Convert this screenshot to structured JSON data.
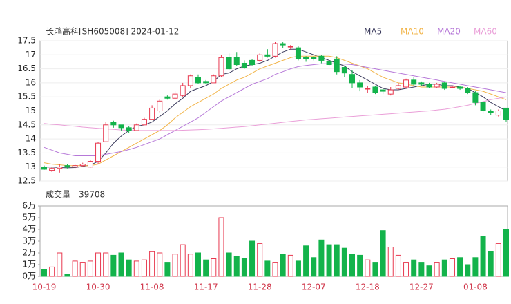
{
  "chart_data": [
    {
      "type": "candlestick",
      "title": "长鸿高科[SH605008] 2024-01-12",
      "up_color": "#e8384f",
      "down_color": "#13b34b",
      "open": [
        13.0,
        12.88,
        12.95,
        13.05,
        13.0,
        13.05,
        13.0,
        13.2,
        13.9,
        14.6,
        14.5,
        14.4,
        14.3,
        14.5,
        14.7,
        15.0,
        15.5,
        15.45,
        15.55,
        15.9,
        16.2,
        16.05,
        16.0,
        16.25,
        16.9,
        16.9,
        16.7,
        16.8,
        16.8,
        17.0,
        16.95,
        17.4,
        17.3,
        17.25,
        16.9,
        16.9,
        16.95,
        16.75,
        16.85,
        16.55,
        16.3,
        16.0,
        15.8,
        15.85,
        15.75,
        15.6,
        15.8,
        15.85,
        16.1,
        16.0,
        15.95,
        15.85,
        16.0,
        15.85,
        15.85,
        15.8,
        15.65,
        15.3,
        15.0,
        14.85,
        15.1
      ],
      "high": [
        13.05,
        13.0,
        13.1,
        13.1,
        13.1,
        13.15,
        13.25,
        13.9,
        14.6,
        14.65,
        14.5,
        14.45,
        14.55,
        14.75,
        15.2,
        15.4,
        15.55,
        15.7,
        16.0,
        16.3,
        16.3,
        16.1,
        16.3,
        17.0,
        17.05,
        17.1,
        16.8,
        16.85,
        17.05,
        17.2,
        17.45,
        17.45,
        17.35,
        17.3,
        16.95,
        16.95,
        17.0,
        16.8,
        16.95,
        16.6,
        16.45,
        16.1,
        15.9,
        15.9,
        15.8,
        15.85,
        16.0,
        16.15,
        16.2,
        16.05,
        16.0,
        16.0,
        16.05,
        15.9,
        15.9,
        15.85,
        15.7,
        15.35,
        15.05,
        15.05,
        15.1
      ],
      "low": [
        12.9,
        12.82,
        12.8,
        12.95,
        12.95,
        13.0,
        12.98,
        13.1,
        13.9,
        14.4,
        14.3,
        14.2,
        14.3,
        14.5,
        14.7,
        14.95,
        15.4,
        15.4,
        15.5,
        15.8,
        15.95,
        15.95,
        16.0,
        16.2,
        16.45,
        16.6,
        16.5,
        16.6,
        16.75,
        16.9,
        16.9,
        17.25,
        17.2,
        16.8,
        16.75,
        16.8,
        16.7,
        16.6,
        16.3,
        16.2,
        15.8,
        15.7,
        15.65,
        15.6,
        15.6,
        15.55,
        15.75,
        15.8,
        15.9,
        15.9,
        15.8,
        15.8,
        15.75,
        15.8,
        15.75,
        15.6,
        15.2,
        14.9,
        14.85,
        14.8,
        14.6
      ],
      "close": [
        12.92,
        12.95,
        13.0,
        13.0,
        13.05,
        13.1,
        13.2,
        13.85,
        14.5,
        14.5,
        14.4,
        14.3,
        14.5,
        14.7,
        15.1,
        15.35,
        15.45,
        15.6,
        15.9,
        16.25,
        16.0,
        16.0,
        16.25,
        16.9,
        16.5,
        16.65,
        16.55,
        16.65,
        17.0,
        16.95,
        17.4,
        17.35,
        17.3,
        16.85,
        16.85,
        16.85,
        16.8,
        16.65,
        16.4,
        16.35,
        16.0,
        15.85,
        15.8,
        15.65,
        15.7,
        15.75,
        15.9,
        16.1,
        15.95,
        15.95,
        15.85,
        15.95,
        15.8,
        15.85,
        15.8,
        15.65,
        15.3,
        15.0,
        14.95,
        15.0,
        14.7
      ],
      "series": [
        {
          "name": "MA5",
          "color": "#3a3a5c",
          "values": [
            13.0,
            13.0,
            12.98,
            12.97,
            12.98,
            13.02,
            13.07,
            13.2,
            13.5,
            13.85,
            14.1,
            14.3,
            14.45,
            14.5,
            14.6,
            14.8,
            15.0,
            15.25,
            15.45,
            15.7,
            15.8,
            15.9,
            16.05,
            16.3,
            16.35,
            16.5,
            16.6,
            16.65,
            16.7,
            16.8,
            16.95,
            17.1,
            17.2,
            17.2,
            17.1,
            17.0,
            16.9,
            16.8,
            16.7,
            16.6,
            16.4,
            16.25,
            16.1,
            15.95,
            15.8,
            15.75,
            15.75,
            15.8,
            15.85,
            15.9,
            15.95,
            15.95,
            15.9,
            15.9,
            15.85,
            15.8,
            15.65,
            15.5,
            15.3,
            15.15,
            15.0
          ]
        },
        {
          "name": "MA10",
          "color": "#f2b54a",
          "values": [
            13.15,
            13.1,
            13.08,
            13.05,
            13.05,
            13.05,
            13.05,
            13.1,
            13.25,
            13.4,
            13.55,
            13.7,
            13.85,
            14.0,
            14.15,
            14.3,
            14.5,
            14.75,
            14.95,
            15.15,
            15.3,
            15.45,
            15.6,
            15.8,
            15.95,
            16.1,
            16.2,
            16.35,
            16.5,
            16.6,
            16.7,
            16.8,
            16.9,
            16.95,
            16.95,
            16.95,
            16.95,
            16.95,
            16.9,
            16.8,
            16.7,
            16.6,
            16.5,
            16.35,
            16.2,
            16.1,
            16.0,
            15.95,
            15.9,
            15.85,
            15.85,
            15.85,
            15.85,
            15.85,
            15.85,
            15.8,
            15.75,
            15.7,
            15.6,
            15.5,
            15.4
          ]
        },
        {
          "name": "MA20",
          "color": "#b678d8",
          "values": [
            13.7,
            13.6,
            13.5,
            13.45,
            13.4,
            13.4,
            13.4,
            13.4,
            13.45,
            13.5,
            13.55,
            13.62,
            13.7,
            13.8,
            13.9,
            14.0,
            14.15,
            14.3,
            14.45,
            14.6,
            14.75,
            14.95,
            15.15,
            15.35,
            15.5,
            15.65,
            15.8,
            15.95,
            16.05,
            16.15,
            16.3,
            16.4,
            16.5,
            16.58,
            16.62,
            16.65,
            16.68,
            16.68,
            16.68,
            16.67,
            16.65,
            16.6,
            16.55,
            16.5,
            16.45,
            16.4,
            16.35,
            16.3,
            16.25,
            16.2,
            16.15,
            16.1,
            16.05,
            16.0,
            15.95,
            15.9,
            15.85,
            15.8,
            15.75,
            15.7,
            15.65
          ]
        },
        {
          "name": "MA60",
          "color": "#ea9fd8",
          "values": [
            14.55,
            14.52,
            14.5,
            14.47,
            14.45,
            14.42,
            14.4,
            14.38,
            14.36,
            14.34,
            14.32,
            14.31,
            14.3,
            14.3,
            14.3,
            14.3,
            14.3,
            14.3,
            14.31,
            14.32,
            14.33,
            14.34,
            14.36,
            14.38,
            14.4,
            14.42,
            14.44,
            14.47,
            14.5,
            14.53,
            14.56,
            14.59,
            14.62,
            14.65,
            14.68,
            14.7,
            14.72,
            14.74,
            14.76,
            14.78,
            14.8,
            14.82,
            14.84,
            14.86,
            14.88,
            14.9,
            14.92,
            14.94,
            14.96,
            14.98,
            15.0,
            15.03,
            15.06,
            15.1,
            15.15,
            15.2,
            15.27,
            15.33,
            15.4,
            15.45,
            15.5
          ]
        }
      ],
      "ylim": [
        12.5,
        17.5
      ],
      "yticks": [
        12.5,
        13,
        13.5,
        14,
        14.5,
        15,
        15.5,
        16,
        16.5,
        17,
        17.5
      ],
      "grid": true
    },
    {
      "type": "bar",
      "title": "成交量",
      "last_value_label": "39708",
      "categories": [
        "10-19",
        null,
        null,
        null,
        null,
        null,
        null,
        "10-30",
        null,
        null,
        null,
        null,
        null,
        null,
        "11-08",
        null,
        null,
        null,
        null,
        null,
        null,
        "11-17",
        null,
        null,
        null,
        null,
        null,
        null,
        "11-28",
        null,
        null,
        null,
        null,
        null,
        null,
        "12-07",
        null,
        null,
        null,
        null,
        null,
        null,
        "12-18",
        null,
        null,
        null,
        null,
        null,
        null,
        "12-27",
        null,
        null,
        null,
        null,
        null,
        null,
        "01-08",
        null,
        null,
        null,
        null
      ],
      "values": [
        0.6,
        0.8,
        2.0,
        0.2,
        1.3,
        1.2,
        1.3,
        2.0,
        2.0,
        1.8,
        2.0,
        1.4,
        1.3,
        1.4,
        2.1,
        2.0,
        1.2,
        1.9,
        2.7,
        1.9,
        2.0,
        1.4,
        1.5,
        5.0,
        2.0,
        1.7,
        1.5,
        3.0,
        2.8,
        1.3,
        1.2,
        1.9,
        1.8,
        1.3,
        2.6,
        1.6,
        3.1,
        2.7,
        2.7,
        2.4,
        1.9,
        1.8,
        1.4,
        1.2,
        3.9,
        2.5,
        1.8,
        1.2,
        1.4,
        1.2,
        0.9,
        1.2,
        1.4,
        1.5,
        1.6,
        1.0,
        1.6,
        3.4,
        2.1,
        2.8,
        3.9708
      ],
      "ylim": [
        0,
        6
      ],
      "yticks": [
        {
          "value": 0,
          "label": "0万"
        },
        {
          "value": 1,
          "label": "1万"
        },
        {
          "value": 2,
          "label": "2万"
        },
        {
          "value": 3,
          "label": "3万"
        },
        {
          "value": 4,
          "label": "4万"
        },
        {
          "value": 5,
          "label": "5万"
        },
        {
          "value": 6,
          "label": "6万"
        }
      ]
    }
  ]
}
